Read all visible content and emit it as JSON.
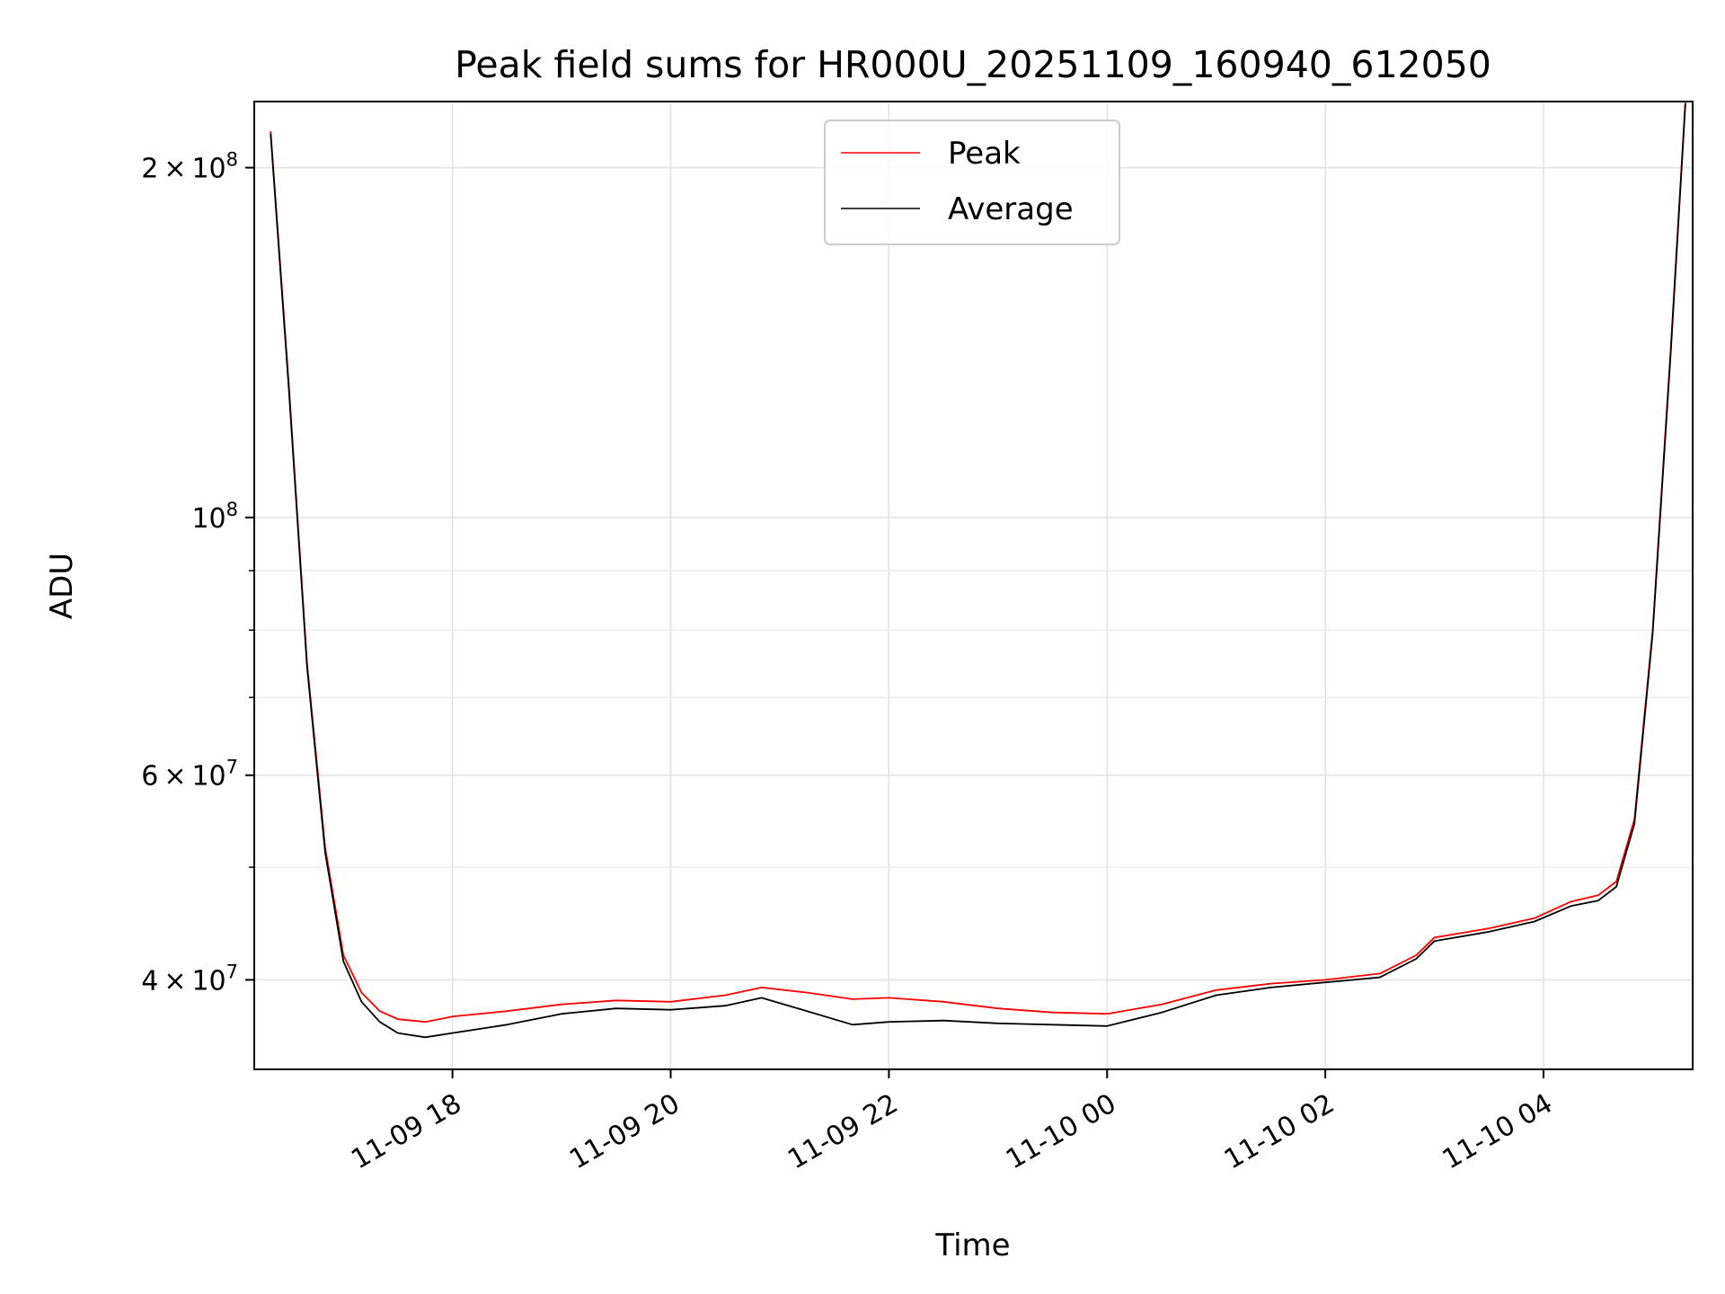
{
  "chart_data": {
    "type": "line",
    "title": "Peak field sums for HR000U_20251109_160940_612050",
    "xlabel": "Time",
    "ylabel": "ADU",
    "yscale": "log",
    "ylim": [
      33500000,
      228000000
    ],
    "xlim": [
      "2025-11-09 16:11",
      "2025-11-10 05:22"
    ],
    "grid": true,
    "legend": "top-center",
    "x_ticks": [
      "11-09 18",
      "11-09 20",
      "11-09 22",
      "11-10 00",
      "11-10 02",
      "11-10 04"
    ],
    "y_ticks": [
      "2 × 10^8",
      "10^8",
      "6 × 10^7",
      "4 × 10^7"
    ],
    "series": [
      {
        "name": "Peak",
        "color": "#ff0000",
        "x": [
          "2025-11-09 16:20",
          "2025-11-09 16:30",
          "2025-11-09 16:40",
          "2025-11-09 16:50",
          "2025-11-09 17:00",
          "2025-11-09 17:10",
          "2025-11-09 17:20",
          "2025-11-09 17:30",
          "2025-11-09 17:45",
          "2025-11-09 18:00",
          "2025-11-09 18:30",
          "2025-11-09 19:00",
          "2025-11-09 19:30",
          "2025-11-09 20:00",
          "2025-11-09 20:30",
          "2025-11-09 20:50",
          "2025-11-09 21:15",
          "2025-11-09 21:40",
          "2025-11-09 22:00",
          "2025-11-09 22:30",
          "2025-11-09 23:00",
          "2025-11-09 23:30",
          "2025-11-10 00:00",
          "2025-11-10 00:30",
          "2025-11-10 01:00",
          "2025-11-10 01:30",
          "2025-11-10 02:00",
          "2025-11-10 02:30",
          "2025-11-10 02:50",
          "2025-11-10 03:00",
          "2025-11-10 03:30",
          "2025-11-10 03:55",
          "2025-11-10 04:15",
          "2025-11-10 04:30",
          "2025-11-10 04:40",
          "2025-11-10 04:50",
          "2025-11-10 05:00",
          "2025-11-10 05:10",
          "2025-11-10 05:18"
        ],
        "values": [
          215000000,
          130000000,
          75000000,
          52000000,
          42000000,
          39000000,
          37600000,
          37000000,
          36800000,
          37200000,
          37600000,
          38100000,
          38400000,
          38300000,
          38800000,
          39400000,
          39000000,
          38500000,
          38600000,
          38300000,
          37800000,
          37500000,
          37400000,
          38100000,
          39200000,
          39700000,
          40000000,
          40500000,
          42000000,
          43500000,
          44300000,
          45200000,
          46700000,
          47300000,
          48600000,
          55000000,
          80000000,
          140000000,
          228000000
        ]
      },
      {
        "name": "Average",
        "color": "#000000",
        "x": [
          "2025-11-09 16:20",
          "2025-11-09 16:30",
          "2025-11-09 16:40",
          "2025-11-09 16:50",
          "2025-11-09 17:00",
          "2025-11-09 17:10",
          "2025-11-09 17:20",
          "2025-11-09 17:30",
          "2025-11-09 17:45",
          "2025-11-09 18:00",
          "2025-11-09 18:30",
          "2025-11-09 19:00",
          "2025-11-09 19:30",
          "2025-11-09 20:00",
          "2025-11-09 20:30",
          "2025-11-09 20:50",
          "2025-11-09 21:15",
          "2025-11-09 21:40",
          "2025-11-09 22:00",
          "2025-11-09 22:30",
          "2025-11-09 23:00",
          "2025-11-09 23:30",
          "2025-11-10 00:00",
          "2025-11-10 00:30",
          "2025-11-10 01:00",
          "2025-11-10 01:30",
          "2025-11-10 02:00",
          "2025-11-10 02:30",
          "2025-11-10 02:50",
          "2025-11-10 03:00",
          "2025-11-10 03:30",
          "2025-11-10 03:55",
          "2025-11-10 04:15",
          "2025-11-10 04:30",
          "2025-11-10 04:40",
          "2025-11-10 04:50",
          "2025-11-10 05:00",
          "2025-11-10 05:10",
          "2025-11-10 05:18"
        ],
        "values": [
          214000000,
          129000000,
          74500000,
          51500000,
          41500000,
          38300000,
          36800000,
          36000000,
          35700000,
          36000000,
          36600000,
          37400000,
          37800000,
          37700000,
          38000000,
          38600000,
          37600000,
          36600000,
          36800000,
          36900000,
          36700000,
          36600000,
          36500000,
          37500000,
          38800000,
          39400000,
          39800000,
          40200000,
          41700000,
          43200000,
          44000000,
          44900000,
          46300000,
          46800000,
          48100000,
          54500000,
          79500000,
          139000000,
          227000000
        ]
      }
    ]
  }
}
